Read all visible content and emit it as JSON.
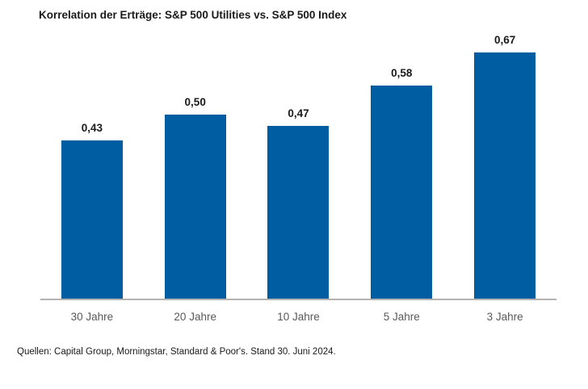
{
  "chart_data": {
    "type": "bar",
    "title": "Korrelation der Erträge: S&P 500 Utilities vs. S&P 500 Index",
    "categories": [
      "30 Jahre",
      "20 Jahre",
      "10 Jahre",
      "5 Jahre",
      "3 Jahre"
    ],
    "values": [
      0.43,
      0.5,
      0.47,
      0.58,
      0.67
    ],
    "value_labels": [
      "0,43",
      "0,50",
      "0,47",
      "0,58",
      "0,67"
    ],
    "xlabel": "",
    "ylabel": "",
    "ylim": [
      0,
      0.73
    ],
    "grid": false,
    "legend": false,
    "bar_color": "#005DA1",
    "baseline_color": "#B3B3B3",
    "value_label_color": "#1A1A1A",
    "category_label_color": "#595959"
  },
  "source_note": "Quellen: Capital Group, Morningstar, Standard & Poor's. Stand 30. Juni 2024."
}
